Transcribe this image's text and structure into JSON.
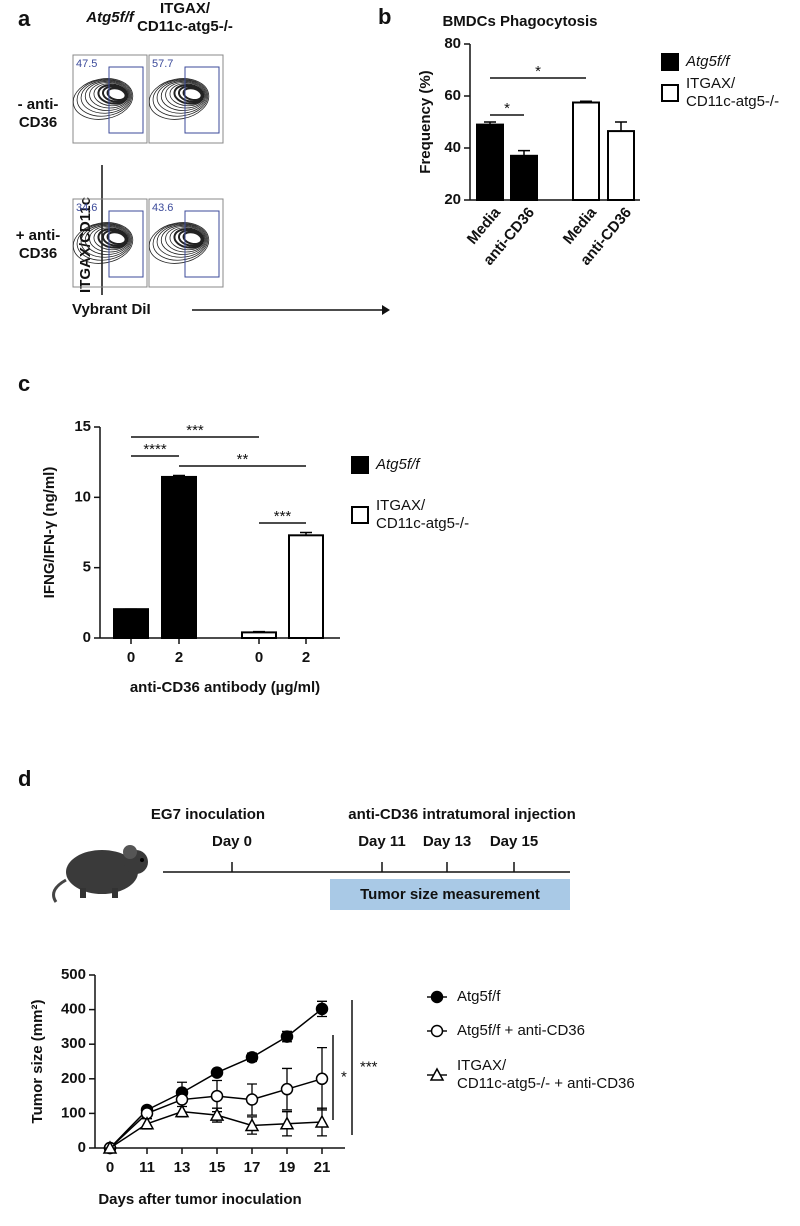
{
  "panel_a": {
    "letter": "a",
    "columns": [
      "Atg5f/f",
      "ITGAX/\nCD11c-atg5-/-"
    ],
    "rows": [
      "- anti-\nCD36",
      "+ anti-\nCD36"
    ],
    "gate_values": [
      [
        47.5,
        57.7
      ],
      [
        34.6,
        43.6
      ]
    ],
    "y_label": "ITGAX/CD11c",
    "x_label": "Vybrant DiI"
  },
  "chart_data": [
    {
      "type": "bar",
      "panel": "b",
      "title": "BMDCs Phagocytosis",
      "y_label": "Frequency (%)",
      "categories": [
        "Media",
        "anti-CD36",
        "Media",
        "anti-CD36"
      ],
      "series": [
        {
          "name": "Atg5f/f",
          "color": "#000000",
          "values": [
            49,
            37,
            null,
            null
          ],
          "errors": [
            1,
            2,
            null,
            null
          ]
        },
        {
          "name": "ITGAX/\nCD11c-atg5-/-",
          "color": "#ffffff",
          "values": [
            null,
            null,
            57.5,
            46.5
          ],
          "errors": [
            null,
            null,
            0.5,
            3.5
          ]
        }
      ],
      "ylim": [
        20,
        80
      ],
      "yticks": [
        20,
        40,
        60,
        80
      ],
      "annotations": [
        {
          "text": "*",
          "from": 0,
          "to": 1
        },
        {
          "text": "*",
          "from": 0,
          "to": 2
        }
      ]
    },
    {
      "type": "bar",
      "panel": "c",
      "y_label": "IFNG/IFN-γ  (ng/ml)",
      "x_label": "anti-CD36 antibody (µg/ml)",
      "categories": [
        "0",
        "2",
        "0",
        "2"
      ],
      "series": [
        {
          "name": "Atg5f/f",
          "color": "#000000",
          "values": [
            2.05,
            11.45,
            null,
            null
          ],
          "errors": [
            0,
            0.1,
            null,
            null
          ]
        },
        {
          "name": "ITGAX/\nCD11c-atg5-/-",
          "color": "#ffffff",
          "values": [
            null,
            null,
            0.4,
            7.3
          ],
          "errors": [
            null,
            null,
            0.05,
            0.2
          ]
        }
      ],
      "ylim": [
        0,
        15
      ],
      "yticks": [
        0,
        5,
        10,
        15
      ],
      "annotations": [
        {
          "text": "***",
          "from": 0,
          "to": 2
        },
        {
          "text": "****",
          "from": 0,
          "to": 1
        },
        {
          "text": "**",
          "from": 1,
          "to": 3
        },
        {
          "text": "***",
          "from": 2,
          "to": 3
        }
      ]
    },
    {
      "type": "line",
      "panel": "d",
      "y_label": "Tumor size (mm²)",
      "x_label": "Days after tumor inoculation",
      "categories": [
        "0",
        "11",
        "13",
        "15",
        "17",
        "19",
        "21"
      ],
      "series": [
        {
          "name": "Atg5f/f",
          "marker": "filled-circle",
          "color": "#000000",
          "values": [
            0,
            110,
            160,
            218,
            262,
            322,
            402
          ],
          "errors": [
            0,
            8,
            8,
            6,
            12,
            15,
            22
          ]
        },
        {
          "name": "Atg5f/f + anti-CD36",
          "marker": "open-circle",
          "color": "#000000",
          "values": [
            0,
            100,
            140,
            150,
            140,
            170,
            200
          ],
          "errors": [
            0,
            15,
            50,
            45,
            45,
            60,
            90
          ]
        },
        {
          "name": "ITGAX/\nCD11c-atg5-/- + anti-CD36",
          "marker": "open-triangle",
          "color": "#000000",
          "values": [
            0,
            70,
            105,
            95,
            65,
            70,
            75
          ],
          "errors": [
            0,
            15,
            15,
            20,
            25,
            35,
            40
          ]
        }
      ],
      "ylim": [
        0,
        500
      ],
      "yticks": [
        0,
        100,
        200,
        300,
        400,
        500
      ],
      "annotations": [
        {
          "text": "*"
        },
        {
          "text": "***"
        }
      ]
    }
  ],
  "timeline": {
    "events": [
      "EG7 inoculation",
      "anti-CD36 intratumoral injection"
    ],
    "days": [
      "Day 0",
      "Day 11",
      "Day 13",
      "Day 15"
    ],
    "measurement": "Tumor size measurement"
  }
}
